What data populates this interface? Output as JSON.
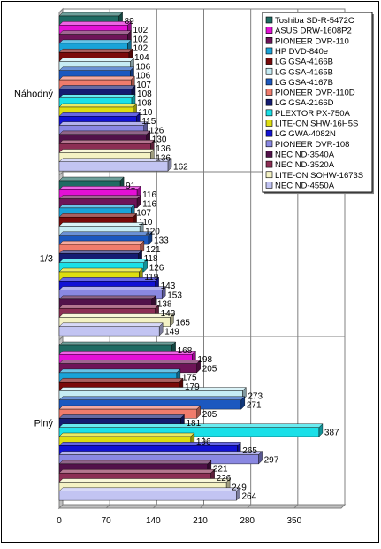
{
  "chart_data": {
    "type": "bar",
    "orientation": "horizontal",
    "style": "3d",
    "categories": [
      "Náhodný",
      "1/3",
      "Plný"
    ],
    "xlim": [
      0,
      420
    ],
    "xticks": [
      0,
      70,
      140,
      210,
      280,
      350
    ],
    "grid": true,
    "legend_position": "top-right",
    "series": [
      {
        "name": "Toshiba SD-R-5472C",
        "color": "#1f6b63",
        "values": [
          89,
          91,
          168
        ]
      },
      {
        "name": "ASUS DRW-1608P2",
        "color": "#e410d6",
        "values": [
          102,
          116,
          198
        ]
      },
      {
        "name": "PIONEER DVR-110",
        "color": "#6e1458",
        "values": [
          102,
          116,
          205
        ]
      },
      {
        "name": "HP DVD-840e",
        "color": "#1aa3d8",
        "values": [
          102,
          107,
          175
        ]
      },
      {
        "name": "LG GSA-4166B",
        "color": "#7a0a0a",
        "values": [
          104,
          110,
          179
        ]
      },
      {
        "name": "LG GSA-4165B",
        "color": "#c6ecf4",
        "values": [
          106,
          120,
          273
        ]
      },
      {
        "name": "LG GSA-4167B",
        "color": "#1c58bf",
        "values": [
          106,
          133,
          271
        ]
      },
      {
        "name": "PIONEER DVR-110D",
        "color": "#f07c6c",
        "values": [
          107,
          121,
          205
        ]
      },
      {
        "name": "LG GSA-2166D",
        "color": "#141c72",
        "values": [
          108,
          118,
          181
        ]
      },
      {
        "name": "PLEXTOR PX-750A",
        "color": "#1ae0e8",
        "values": [
          108,
          126,
          387
        ]
      },
      {
        "name": "LITE-ON SHW-16H5S",
        "color": "#dede10",
        "values": [
          110,
          119,
          196
        ]
      },
      {
        "name": "LG GWA-4082N",
        "color": "#1212d4",
        "values": [
          115,
          143,
          265
        ]
      },
      {
        "name": "PIONEER DVR-108",
        "color": "#8a88e2",
        "values": [
          126,
          153,
          297
        ]
      },
      {
        "name": "NEC ND-3540A",
        "color": "#52124a",
        "values": [
          130,
          138,
          221
        ]
      },
      {
        "name": "NEC ND-3520A",
        "color": "#8c2e54",
        "values": [
          136,
          143,
          226
        ]
      },
      {
        "name": "LITE-ON SOHW-1673S",
        "color": "#f4f2c4",
        "values": [
          136,
          165,
          249
        ]
      },
      {
        "name": "NEC ND-4550A",
        "color": "#c2c4f2",
        "values": [
          162,
          149,
          264
        ]
      }
    ]
  }
}
